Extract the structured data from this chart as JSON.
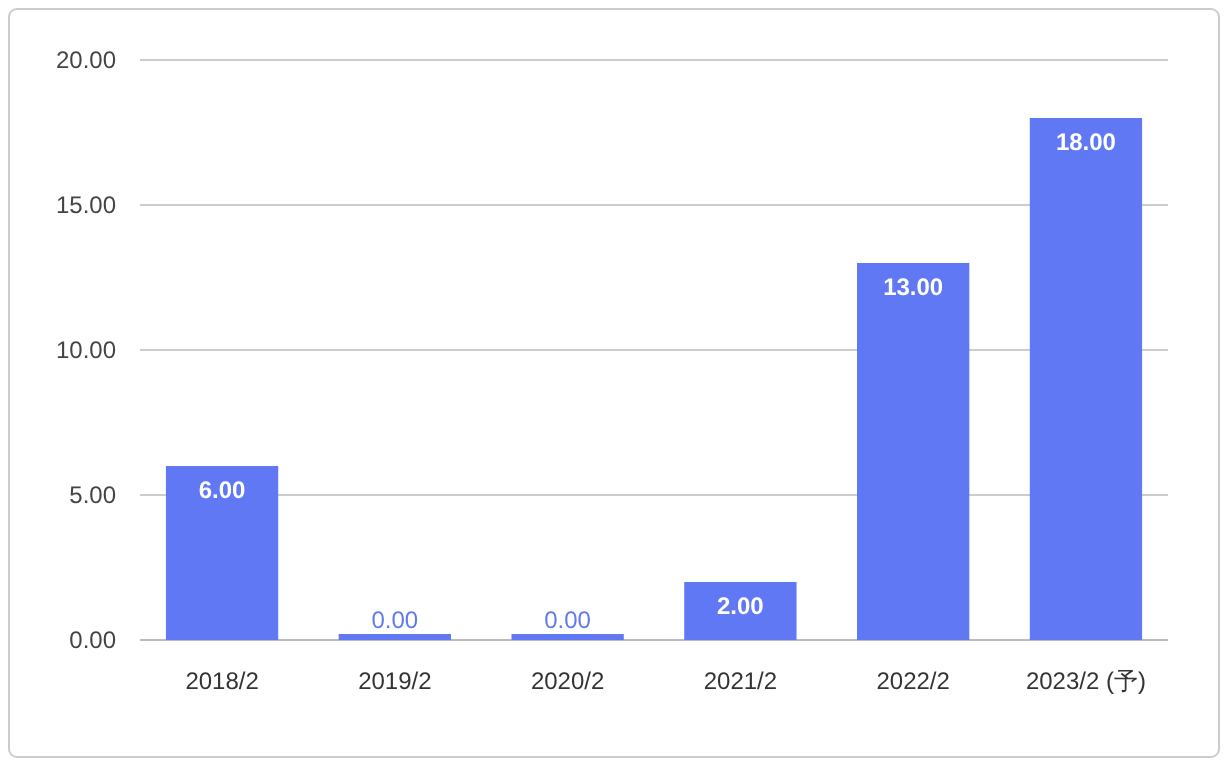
{
  "chart_data": {
    "type": "bar",
    "categories": [
      "2018/2",
      "2019/2",
      "2020/2",
      "2021/2",
      "2022/2",
      "2023/2 (予)"
    ],
    "values": [
      6,
      0,
      0,
      2,
      13,
      18
    ],
    "value_labels": [
      "6.00",
      "0.00",
      "0.00",
      "2.00",
      "13.00",
      "18.00"
    ],
    "color": "#6078f4",
    "ylim": [
      0,
      20
    ],
    "yticks": [
      {
        "value": 0,
        "label": "0.00"
      },
      {
        "value": 5,
        "label": "5.00"
      },
      {
        "value": 10,
        "label": "10.00"
      },
      {
        "value": 15,
        "label": "15.00"
      },
      {
        "value": 20,
        "label": "20.00"
      }
    ],
    "grid": true
  }
}
